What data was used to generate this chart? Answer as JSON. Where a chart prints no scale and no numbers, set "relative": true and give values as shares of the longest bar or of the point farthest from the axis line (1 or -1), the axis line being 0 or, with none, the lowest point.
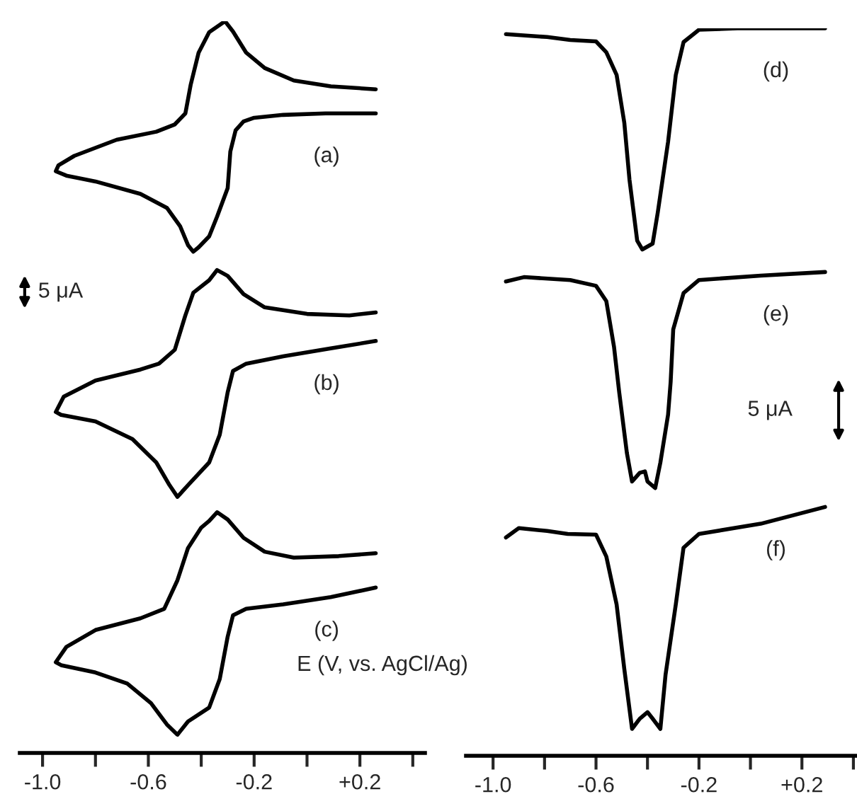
{
  "chart_data": [
    {
      "type": "line",
      "relative": true,
      "xlabel": "E (V, vs. AgCl/Ag)",
      "xlim": [
        -1.086,
        0.446
      ],
      "xticks": [
        {
          "value": -1.0,
          "label": "-1.0"
        },
        {
          "value": -0.8,
          "label": null
        },
        {
          "value": -0.6,
          "label": "-0.6"
        },
        {
          "value": -0.4,
          "label": null
        },
        {
          "value": -0.2,
          "label": "-0.2"
        },
        {
          "value": 0.0,
          "label": null
        },
        {
          "value": 0.2,
          "label": "+0.2"
        },
        {
          "value": 0.4,
          "label": null
        }
      ],
      "tick_labels": "x",
      "grid": false,
      "legend": false,
      "marker": "none",
      "line_style": "solid",
      "annotations": [
        "5 μA"
      ],
      "series": [
        {
          "name": "(a)",
          "color": "#000000",
          "x": [
            0.26,
            0.07,
            -0.09,
            -0.2,
            -0.24,
            -0.27,
            -0.29,
            -0.3,
            -0.34,
            -0.37,
            -0.41,
            -0.43,
            -0.45,
            -0.48,
            -0.53,
            -0.63,
            -0.8,
            -0.91,
            -0.95,
            -0.94,
            -0.88,
            -0.72,
            -0.57,
            -0.5,
            -0.46,
            -0.44,
            -0.41,
            -0.37,
            -0.31,
            -0.28,
            -0.23,
            -0.16,
            -0.05,
            0.09,
            0.26
          ],
          "values": [
            0.874,
            0.874,
            0.872,
            0.868,
            0.863,
            0.851,
            0.822,
            0.772,
            0.733,
            0.706,
            0.691,
            0.685,
            0.694,
            0.72,
            0.745,
            0.764,
            0.781,
            0.789,
            0.795,
            0.803,
            0.816,
            0.838,
            0.849,
            0.859,
            0.874,
            0.913,
            0.957,
            0.985,
            1.0,
            0.986,
            0.957,
            0.936,
            0.919,
            0.911,
            0.907
          ]
        },
        {
          "name": "(b)",
          "color": "#000000",
          "x": [
            0.26,
            0.09,
            -0.09,
            -0.23,
            -0.28,
            -0.3,
            -0.33,
            -0.37,
            -0.45,
            -0.49,
            -0.52,
            -0.57,
            -0.66,
            -0.8,
            -0.93,
            -0.95,
            -0.92,
            -0.8,
            -0.63,
            -0.56,
            -0.5,
            -0.46,
            -0.43,
            -0.37,
            -0.34,
            -0.3,
            -0.24,
            -0.16,
            0.0,
            0.16,
            0.26
          ],
          "values": [
            0.563,
            0.553,
            0.542,
            0.532,
            0.522,
            0.493,
            0.435,
            0.397,
            0.366,
            0.35,
            0.366,
            0.397,
            0.429,
            0.453,
            0.462,
            0.466,
            0.487,
            0.509,
            0.524,
            0.532,
            0.551,
            0.598,
            0.629,
            0.646,
            0.66,
            0.652,
            0.627,
            0.609,
            0.6,
            0.598,
            0.602
          ]
        },
        {
          "name": "(c)",
          "color": "#000000",
          "x": [
            0.26,
            0.09,
            -0.09,
            -0.23,
            -0.28,
            -0.3,
            -0.33,
            -0.37,
            -0.45,
            -0.49,
            -0.53,
            -0.59,
            -0.68,
            -0.8,
            -0.93,
            -0.95,
            -0.91,
            -0.8,
            -0.63,
            -0.54,
            -0.49,
            -0.45,
            -0.4,
            -0.37,
            -0.34,
            -0.3,
            -0.24,
            -0.16,
            -0.05,
            0.12,
            0.26
          ],
          "values": [
            0.226,
            0.213,
            0.203,
            0.197,
            0.188,
            0.159,
            0.101,
            0.062,
            0.043,
            0.025,
            0.039,
            0.068,
            0.095,
            0.11,
            0.12,
            0.124,
            0.145,
            0.168,
            0.184,
            0.197,
            0.236,
            0.28,
            0.308,
            0.317,
            0.329,
            0.319,
            0.294,
            0.275,
            0.267,
            0.269,
            0.273
          ]
        }
      ]
    },
    {
      "type": "line",
      "relative": true,
      "xlim": [
        -1.105,
        0.414
      ],
      "xticks": [
        {
          "value": -1.0,
          "label": "-1.0"
        },
        {
          "value": -0.8,
          "label": null
        },
        {
          "value": -0.6,
          "label": "-0.6"
        },
        {
          "value": -0.4,
          "label": null
        },
        {
          "value": -0.2,
          "label": "-0.2"
        },
        {
          "value": 0.0,
          "label": null
        },
        {
          "value": 0.2,
          "label": "+0.2"
        },
        {
          "value": 0.4,
          "label": null
        }
      ],
      "tick_labels": "x",
      "grid": false,
      "legend": false,
      "marker": "none",
      "line_style": "solid",
      "annotations": [
        "5 μA"
      ],
      "series": [
        {
          "name": "(d)",
          "color": "#000000",
          "x": [
            -0.95,
            -0.79,
            -0.7,
            -0.6,
            -0.56,
            -0.52,
            -0.49,
            -0.47,
            -0.44,
            -0.42,
            -0.38,
            -0.36,
            -0.32,
            -0.29,
            -0.26,
            -0.2,
            -0.05,
            0.29
          ],
          "values": [
            0.992,
            0.988,
            0.984,
            0.982,
            0.967,
            0.936,
            0.87,
            0.792,
            0.708,
            0.696,
            0.704,
            0.747,
            0.844,
            0.936,
            0.981,
            0.998,
            1.0,
            1.0
          ]
        },
        {
          "name": "(e)",
          "color": "#000000",
          "x": [
            -0.95,
            -0.88,
            -0.7,
            -0.6,
            -0.56,
            -0.53,
            -0.51,
            -0.48,
            -0.46,
            -0.43,
            -0.41,
            -0.4,
            -0.37,
            -0.35,
            -0.32,
            -0.31,
            -0.3,
            -0.26,
            -0.2,
            0.04,
            0.29
          ],
          "values": [
            0.652,
            0.658,
            0.654,
            0.646,
            0.625,
            0.562,
            0.5,
            0.416,
            0.377,
            0.389,
            0.391,
            0.377,
            0.368,
            0.403,
            0.469,
            0.514,
            0.586,
            0.636,
            0.654,
            0.66,
            0.665
          ]
        },
        {
          "name": "(f)",
          "color": "#000000",
          "x": [
            -0.95,
            -0.9,
            -0.79,
            -0.71,
            -0.6,
            -0.56,
            -0.52,
            -0.49,
            -0.46,
            -0.43,
            -0.4,
            -0.38,
            -0.35,
            -0.33,
            -0.29,
            -0.26,
            -0.2,
            0.04,
            0.29
          ],
          "values": [
            0.3,
            0.313,
            0.309,
            0.305,
            0.304,
            0.274,
            0.208,
            0.119,
            0.037,
            0.051,
            0.06,
            0.051,
            0.037,
            0.111,
            0.208,
            0.286,
            0.305,
            0.319,
            0.342
          ]
        }
      ]
    }
  ]
}
